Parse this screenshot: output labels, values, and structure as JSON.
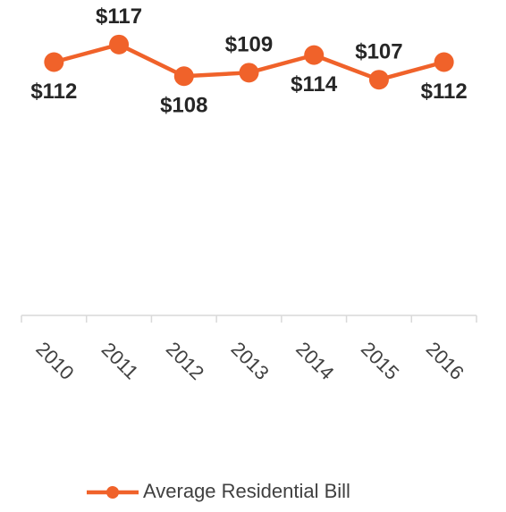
{
  "chart_data": {
    "type": "line",
    "categories": [
      "2010",
      "2011",
      "2012",
      "2013",
      "2014",
      "2015",
      "2016"
    ],
    "series": [
      {
        "name": "Average Residential Bill",
        "color": "#f0622a",
        "values": [
          112,
          117,
          108,
          109,
          114,
          107,
          112
        ],
        "value_labels": [
          "$112",
          "$117",
          "$108",
          "$109",
          "$114",
          "$107",
          "$112"
        ]
      }
    ],
    "ylim": [
      40,
      120
    ],
    "legend": "bottom"
  }
}
